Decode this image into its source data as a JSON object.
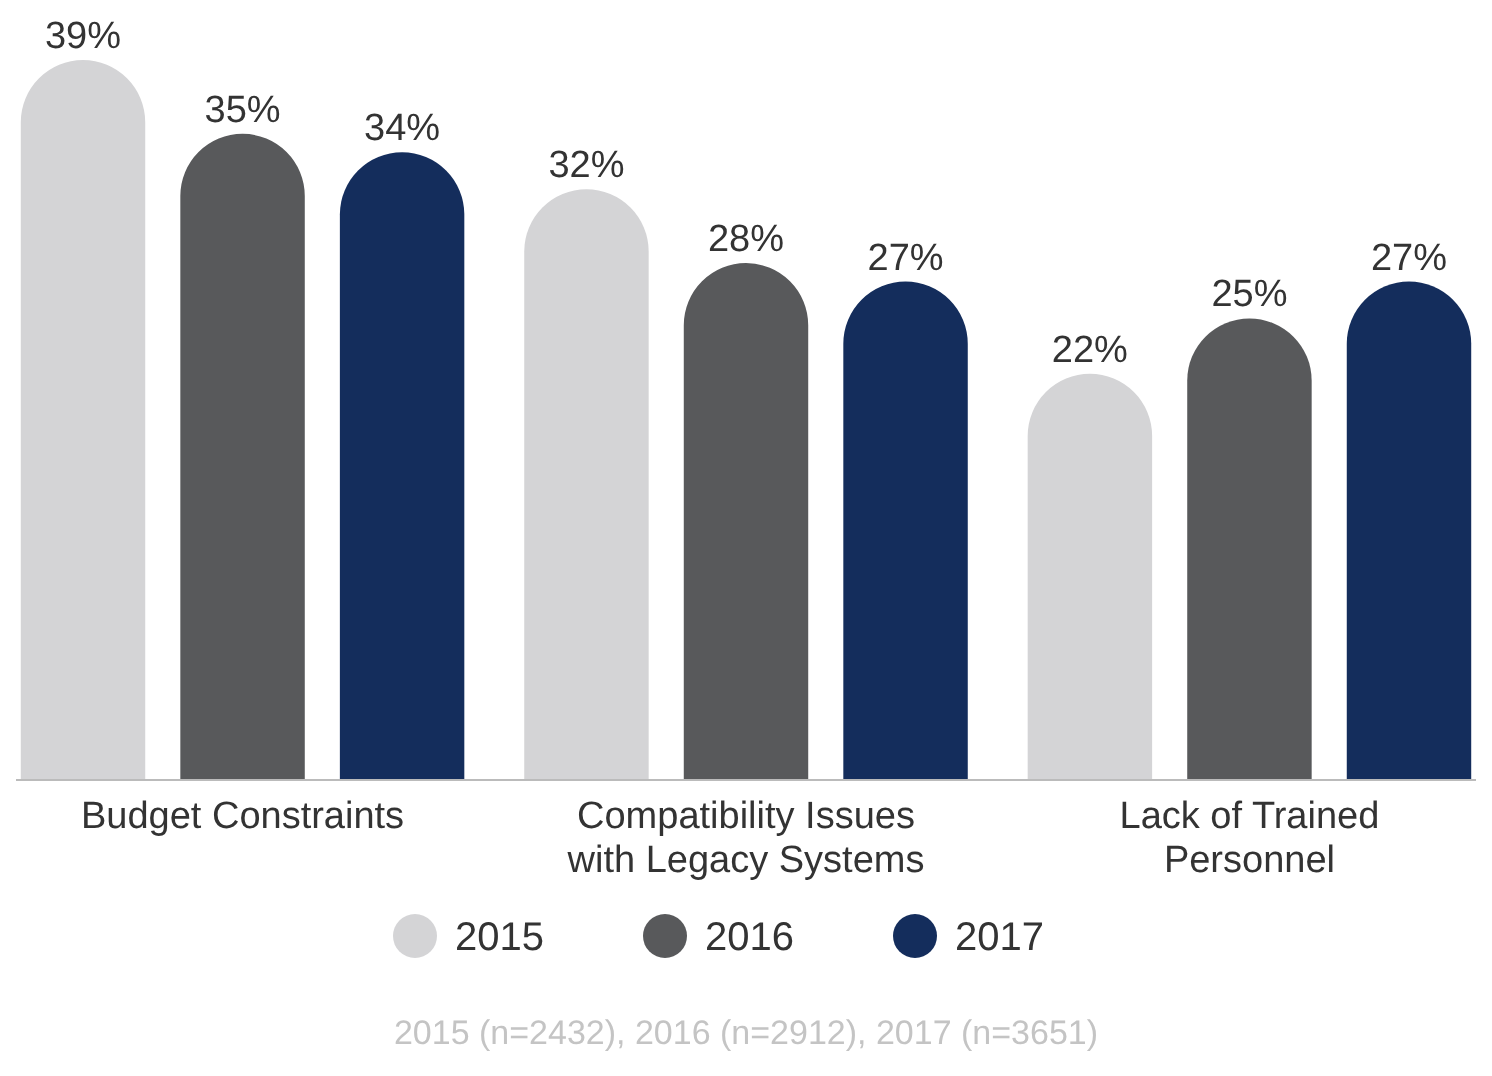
{
  "chart_data": {
    "type": "bar",
    "categories": [
      "Budget Constraints",
      "Compatibility Issues with Legacy Systems",
      "Lack of Trained Personnel"
    ],
    "series": [
      {
        "name": "2015",
        "color": "#d4d4d6",
        "values": [
          39,
          32,
          22
        ],
        "value_labels": [
          "39%",
          "32%",
          "22%"
        ]
      },
      {
        "name": "2016",
        "color": "#58595b",
        "values": [
          35,
          28,
          25
        ],
        "value_labels": [
          "35%",
          "28%",
          "25%"
        ]
      },
      {
        "name": "2017",
        "color": "#142d5c",
        "values": [
          34,
          27,
          27
        ],
        "value_labels": [
          "34%",
          "27%",
          "27%"
        ]
      }
    ],
    "legend": "bottom",
    "annotations": [
      "2015 (n=2432), 2016 (n=2912), 2017 (n=3651)"
    ]
  }
}
